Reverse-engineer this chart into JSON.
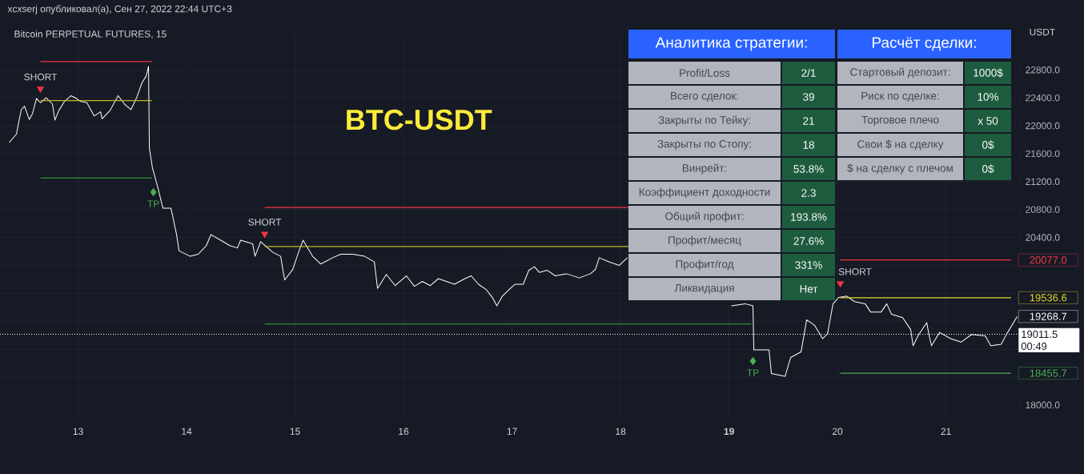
{
  "chart_data": [
    {
      "type": "line",
      "title": "xcxserj опубликовал(а), Сен 27, 2022 22:44 UTC+3",
      "subtitle": "Bitcoin PERPETUAL FUTURES, 15",
      "ylabel": "USDT",
      "xlim": [
        12.28,
        21.69
      ],
      "ylim": [
        17780,
        23300
      ],
      "grid": true,
      "xticks": [
        13,
        14,
        15,
        16,
        17,
        18,
        {
          "value": 19,
          "label": "**19**"
        },
        20,
        21
      ],
      "yticks": [
        {
          "value": 18000,
          "label": "18000.0"
        },
        {
          "value": 18400,
          "label": null
        },
        {
          "value": 18800,
          "label": null
        },
        {
          "value": 19200,
          "label": null
        },
        {
          "value": 19600,
          "label": null
        },
        {
          "value": 20000,
          "label": null
        },
        {
          "value": 20400,
          "label": "20400.0"
        },
        {
          "value": 20800,
          "label": "20800.0"
        },
        {
          "value": 21200,
          "label": "21200.0"
        },
        {
          "value": 21600,
          "label": "21600.0"
        },
        {
          "value": 22000,
          "label": "22000.0"
        },
        {
          "value": 22400,
          "label": "22400.0"
        },
        {
          "value": 22800,
          "label": "22800.0"
        }
      ],
      "series": [
        {
          "color": "#ffffff",
          "x": [
            12.365,
            12.432,
            12.446,
            12.476,
            12.506,
            12.55,
            12.579,
            12.616,
            12.653,
            12.705,
            12.764,
            12.786,
            12.823,
            12.875,
            12.934,
            12.985,
            13.022,
            13.081,
            13.148,
            13.207,
            13.221,
            13.295,
            13.369,
            13.428,
            13.487,
            13.539,
            13.59,
            13.627,
            13.649,
            13.657,
            13.686,
            13.731,
            13.782,
            13.856,
            13.908,
            13.93,
            14.033,
            14.107,
            14.181,
            14.225,
            14.314,
            14.402,
            14.469,
            14.498,
            14.609,
            14.631,
            14.683,
            14.793,
            14.867,
            14.904,
            14.978,
            15.037,
            15.074,
            15.162,
            15.236,
            15.347,
            15.421,
            15.531,
            15.642,
            15.731,
            15.76,
            15.841,
            15.923,
            16.026,
            16.1,
            16.173,
            16.247,
            16.321,
            16.395,
            16.469,
            16.565,
            16.624,
            16.69,
            16.764,
            16.823,
            16.86,
            16.911,
            16.985,
            17.03,
            17.103,
            17.155,
            17.207,
            17.251,
            17.325,
            17.399,
            17.502,
            17.62,
            17.723,
            17.768,
            17.804,
            17.893,
            17.989,
            18.063,
            18.5,
            19.022,
            19.148,
            19.221,
            19.229,
            19.369,
            19.391,
            19.517,
            19.568,
            19.664,
            19.716,
            19.79,
            19.863,
            19.908,
            19.959,
            20.011,
            20.085,
            20.159,
            20.255,
            20.306,
            20.402,
            20.454,
            20.498,
            20.601,
            20.675,
            20.697,
            20.749,
            20.823,
            20.845,
            20.867,
            20.941,
            21.044,
            21.14,
            21.236,
            21.362,
            21.413,
            21.509,
            21.561,
            21.657
          ],
          "values": [
            21760,
            21880,
            22000,
            22230,
            22280,
            22090,
            22170,
            22390,
            22330,
            22400,
            22310,
            22080,
            22220,
            22350,
            22430,
            22390,
            22350,
            22330,
            22140,
            22200,
            22100,
            22220,
            22430,
            22310,
            22230,
            22400,
            22620,
            22710,
            22850,
            21680,
            21390,
            21140,
            20820,
            20820,
            20440,
            20210,
            20130,
            20160,
            20280,
            20440,
            20360,
            20280,
            20250,
            20360,
            20310,
            20130,
            20340,
            20190,
            20130,
            19790,
            19940,
            20210,
            20360,
            20130,
            20020,
            20110,
            20160,
            20160,
            20130,
            20050,
            19670,
            19870,
            19710,
            19850,
            19700,
            19770,
            19710,
            19810,
            19770,
            19730,
            19810,
            19850,
            19730,
            19650,
            19530,
            19420,
            19560,
            19670,
            19730,
            19730,
            19930,
            19980,
            19900,
            19930,
            19850,
            19880,
            19820,
            19880,
            19940,
            20110,
            20050,
            20000,
            20110,
            null,
            19420,
            19450,
            19420,
            18790,
            18790,
            18450,
            18410,
            18680,
            18760,
            19220,
            19140,
            18950,
            19020,
            19450,
            19540,
            19560,
            19480,
            19450,
            19330,
            19330,
            19450,
            19300,
            19250,
            19080,
            18850,
            19010,
            19180,
            18990,
            18850,
            19040,
            18950,
            18900,
            19010,
            18990,
            18850,
            18870,
            19020,
            19268.7
          ],
          "value_labels": [
            null,
            null,
            null,
            null,
            null,
            null,
            null,
            null,
            null,
            null,
            null,
            null,
            null,
            null,
            null,
            null,
            null,
            null,
            null,
            null,
            null,
            null,
            null,
            null,
            null,
            null,
            null,
            null,
            null,
            null,
            null,
            null,
            null,
            null,
            null,
            null,
            null,
            null,
            null,
            null,
            null,
            null,
            null,
            null,
            null,
            null,
            null,
            null,
            null,
            null,
            null,
            null,
            null,
            null,
            null,
            null,
            null,
            null,
            null,
            null,
            null,
            null,
            null,
            null,
            null,
            null,
            null,
            null,
            null,
            null,
            null,
            null,
            null,
            null,
            null,
            null,
            null,
            null,
            null,
            null,
            null,
            null,
            null,
            null,
            null,
            null,
            null,
            null,
            null,
            null,
            null,
            null,
            null,
            null,
            null,
            null,
            null,
            null,
            null,
            null,
            null,
            null,
            null,
            null,
            null,
            null,
            null,
            null,
            null,
            null,
            null,
            null,
            null,
            null,
            null,
            null,
            null,
            null,
            null,
            null,
            null,
            null,
            null,
            null,
            null,
            null,
            null,
            null,
            null,
            null,
            null,
            "19268.7"
          ]
        },
        {
          "color": "#f23645",
          "x": [
            12.653,
            13.679
          ],
          "values": [
            22920,
            22920
          ]
        },
        {
          "color": "#c8b62b",
          "x": [
            12.653,
            13.679
          ],
          "values": [
            22360,
            22360
          ]
        },
        {
          "color": "#388e3c",
          "x": [
            12.653,
            13.679
          ],
          "values": [
            21250,
            21250
          ]
        },
        {
          "color": "#f23645",
          "x": [
            14.72,
            18.077
          ],
          "values": [
            20830,
            20830
          ]
        },
        {
          "color": "#c8b62b",
          "x": [
            14.72,
            18.077
          ],
          "values": [
            20270,
            20270
          ]
        },
        {
          "color": "#388e3c",
          "x": [
            14.72,
            19.207
          ],
          "values": [
            19160,
            19160
          ]
        },
        {
          "color": "#f23645",
          "x": [
            20.026,
            21.6
          ],
          "values": [
            20077,
            20077
          ],
          "value_labels": [
            null,
            "20077.0"
          ]
        },
        {
          "color": "#e6d52f",
          "x": [
            20.026,
            21.6
          ],
          "values": [
            19536.6,
            19536.6
          ],
          "value_labels": [
            null,
            "19536.6"
          ]
        },
        {
          "color": "#4caf50",
          "x": [
            20.026,
            21.6
          ],
          "values": [
            18455.7,
            18455.7
          ],
          "value_labels": [
            null,
            "18455.7"
          ]
        },
        {
          "type": "scatter",
          "marker": "triangle",
          "color": "#f23645",
          "x": [
            12.653,
            14.72,
            20.026
          ],
          "values": [
            22530,
            20450,
            19740
          ]
        },
        {
          "type": "scatter",
          "marker": "diamond",
          "color": "#4caf50",
          "x": [
            13.694,
            19.221
          ],
          "values": [
            21050,
            18630
          ]
        }
      ],
      "ref_lines": [
        {
          "axis": "y",
          "value": 19011.5,
          "label": "19011.5",
          "color": "#ffffff",
          "line_style": "dotted"
        }
      ],
      "annotations": [
        "SHORT",
        "SHORT",
        "SHORT",
        "TP",
        "TP",
        "BTC-USDT",
        "00:49"
      ]
    },
    {
      "type": "other",
      "annotations": [
        "Аналитика стратегии:",
        "Расчёт сделки:",
        "Profit/Loss",
        "2/1",
        "Всего сделок:",
        "39",
        "Закрыты по Тейку:",
        "21",
        "Закрыты по Стопу:",
        "18",
        "Винрейт:",
        "53.8%",
        "Коэффициент доходности",
        "2.3",
        "Общий профит:",
        "193.8%",
        "Профит/месяц",
        "27.6%",
        "Профит/год",
        "331%",
        "Ликвидация",
        "Нет",
        "Стартовый депозит:",
        "1000$",
        "Риск по сделке:",
        "10%",
        "Торговое плечо",
        "x 50",
        "Свои $ на сделку",
        "0$",
        "$ на сделку с плечом",
        "0$"
      ]
    }
  ]
}
